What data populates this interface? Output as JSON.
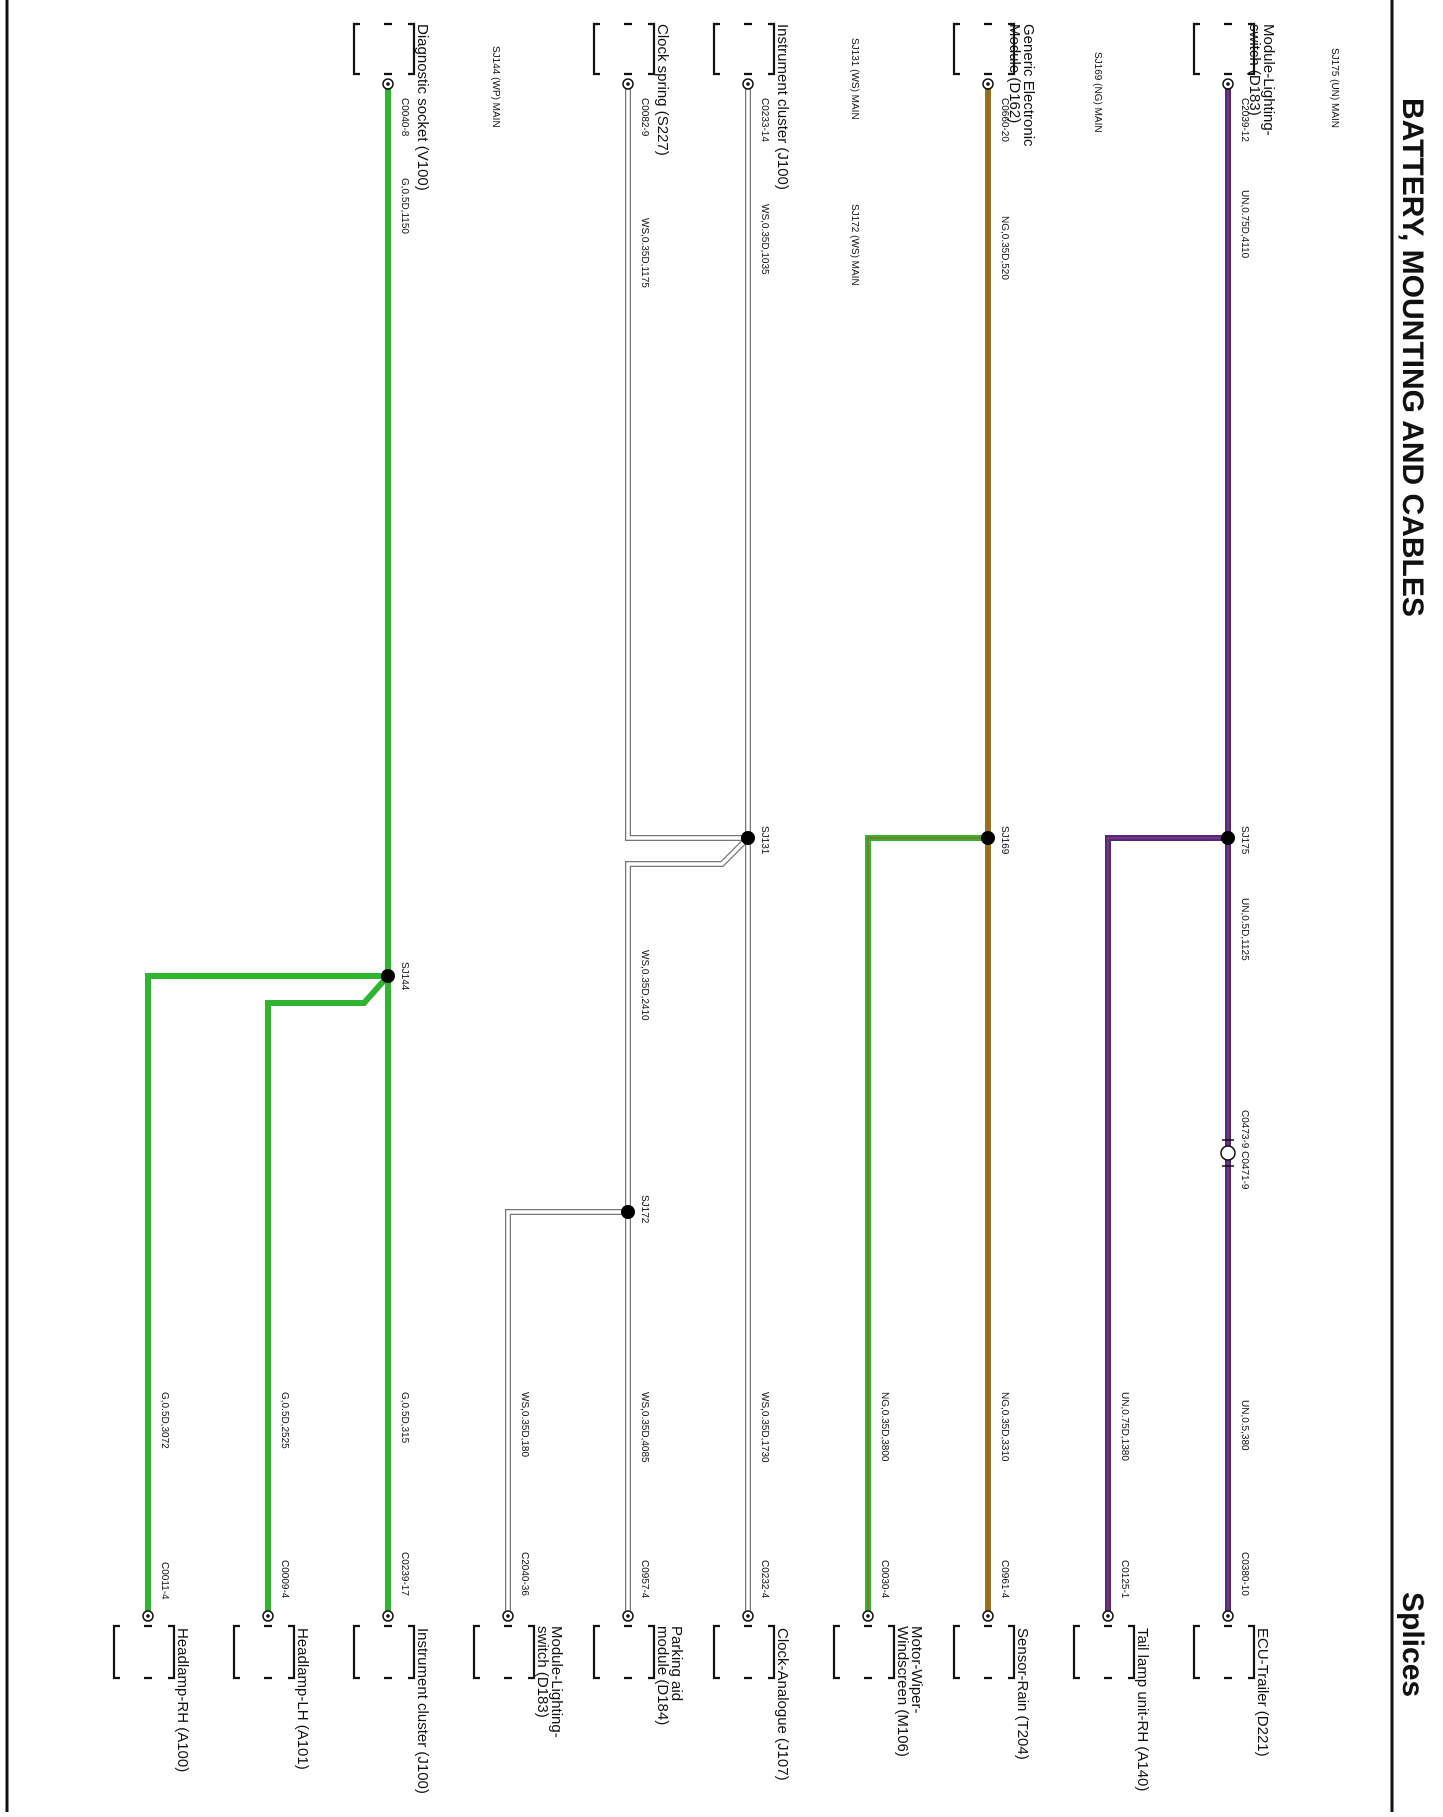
{
  "header": {
    "title": "BATTERY, MOUNTING AND CABLES",
    "section": "Splices"
  },
  "colors": {
    "purple": "#4a2a8c",
    "purple_stripe": "#c23b3b",
    "olive": "#8a7a1e",
    "olive_stripe": "#d23a2a",
    "green": "#2fb52f",
    "green_stripe": "#1c8a1c",
    "white_wire": "#ffffff",
    "white_outline": "#777777",
    "splice": "#000000"
  },
  "splice_list": [
    "SJ175 (UN) MAIN",
    "SJ169 (NG) MAIN",
    "SJ131 (WS) MAIN",
    "SJ172 (WS) MAIN",
    "SJ144 (WP) MAIN"
  ],
  "top_components": [
    {
      "id": "module-lighting-switch-top",
      "label": [
        "Module-Lighting-",
        "switch (D183)"
      ],
      "connector": "C2039-12",
      "wire": "UN,0.75D,4110"
    },
    {
      "id": "generic-electronic-module",
      "label": [
        "Generic Electronic",
        "Module (D162)"
      ],
      "connector": "C0660-20",
      "wire": "NG,0.35D,520"
    },
    {
      "id": "instrument-cluster-top",
      "label": [
        "Instrument cluster (J100)"
      ],
      "connector": "C0233-14",
      "wire": "WS,0.35D,1035"
    },
    {
      "id": "clock-spring",
      "label": [
        "Clock spring (S227)"
      ],
      "connector": "C0082-9",
      "wire": "WS,0.35D,1175"
    },
    {
      "id": "diagnostic-socket",
      "label": [
        "Diagnostic socket (V100)"
      ],
      "connector": "C0040-8",
      "wire": "G,0.5D,1150"
    }
  ],
  "splices": [
    {
      "id": "SJ175",
      "label": "SJ175"
    },
    {
      "id": "SJ169",
      "label": "SJ169"
    },
    {
      "id": "SJ131",
      "label": "SJ131"
    },
    {
      "id": "SJ172",
      "label": "SJ172"
    },
    {
      "id": "SJ144",
      "label": "SJ144"
    }
  ],
  "mid_labels": {
    "un_after_sj175": "UN,0.5D,1125",
    "inline_connector": "C0473-9 C0471-9",
    "ws_after_sj131": "WS,0.35D,2410"
  },
  "bottom_components": [
    {
      "id": "ecu-trailer",
      "label": [
        "ECU-Trailer (D221)"
      ],
      "connector": "C0380-10",
      "wire": "UN,0.5,380"
    },
    {
      "id": "tail-lamp-unit-rh",
      "label": [
        "Tail lamp unit-RH (A140)"
      ],
      "connector": "C0125-1",
      "wire": "UN,0.75D,1380"
    },
    {
      "id": "sensor-rain",
      "label": [
        "Sensor-Rain (T204)"
      ],
      "connector": "C0961-4",
      "wire": "NG,0.35D,3310"
    },
    {
      "id": "motor-wiper-windscreen",
      "label": [
        "Motor-Wiper-",
        "Windscreen (M106)"
      ],
      "connector": "C0030-4",
      "wire": "NG,0.35D,3800"
    },
    {
      "id": "clock-analogue",
      "label": [
        "Clock-Analogue (J107)"
      ],
      "connector": "C0232-4",
      "wire": "WS,0.35D,1730"
    },
    {
      "id": "parking-aid-module",
      "label": [
        "Parking aid",
        "module (D184)"
      ],
      "connector": "C0957-4",
      "wire": "WS,0.35D,4085"
    },
    {
      "id": "module-lighting-switch-bottom",
      "label": [
        "Module-Lighting-",
        "switch (D183)"
      ],
      "connector": "C2040-36",
      "wire": "WS,0.35D,180"
    },
    {
      "id": "instrument-cluster-bottom",
      "label": [
        "Instrument cluster (J100)"
      ],
      "connector": "C0239-17",
      "wire": "G,0.5D,315"
    },
    {
      "id": "headlamp-lh",
      "label": [
        "Headlamp-LH (A101)"
      ],
      "connector": "C0009-4",
      "wire": "G,0.5D,2525"
    },
    {
      "id": "headlamp-rh",
      "label": [
        "Headlamp-RH (A100)"
      ],
      "connector": "C0011-4",
      "wire": "G,0.5D,3072"
    }
  ]
}
